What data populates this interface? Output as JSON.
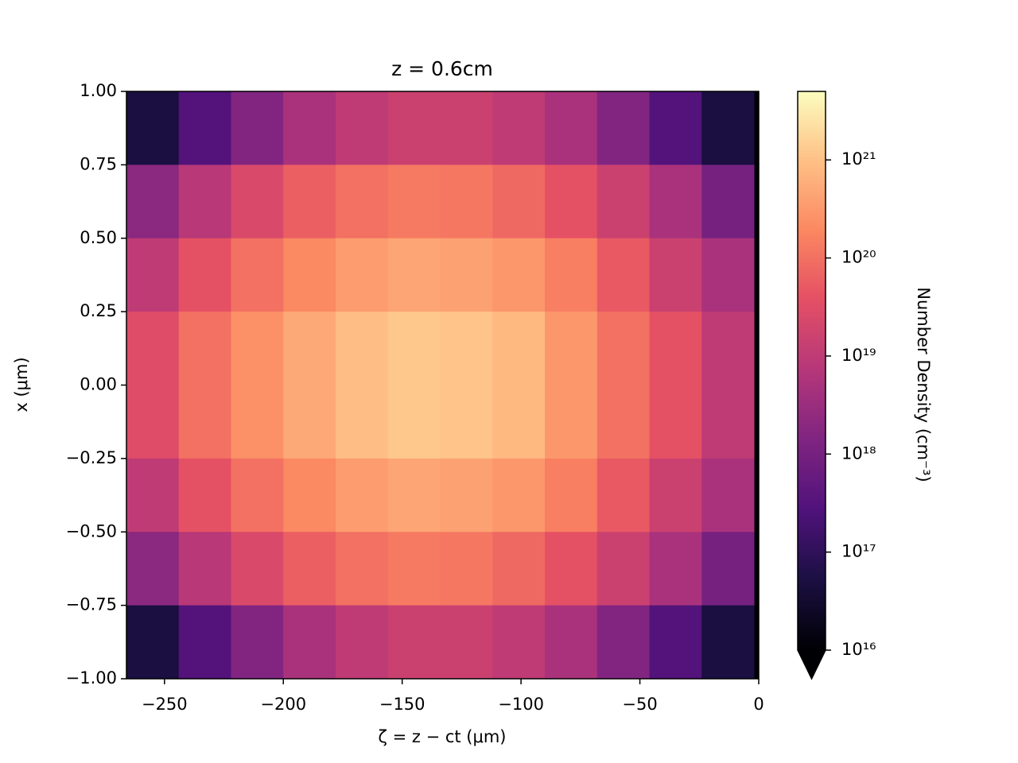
{
  "chart_data": {
    "type": "heatmap",
    "title": "z = 0.6cm",
    "x_label": "ζ = z − ct (μm)",
    "y_label": "x (μm)",
    "colorbar_label": "Number Density (cm⁻³)",
    "cmap": "magma",
    "color_scale": "log",
    "x": [
      -255,
      -233,
      -211,
      -189,
      -167,
      -145,
      -123,
      -101,
      -79,
      -57,
      -35,
      -13
    ],
    "y": [
      0.875,
      0.625,
      0.375,
      0.125,
      -0.125,
      -0.375,
      -0.625,
      -0.875
    ],
    "values": [
      [
        5e+16,
        3e+17,
        1.5e+18,
        5e+18,
        1e+19,
        1.5e+19,
        1.5e+19,
        1e+19,
        5e+18,
        1.5e+18,
        3e+17,
        5e+16
      ],
      [
        2e+18,
        8e+18,
        2.5e+19,
        6e+19,
        1e+20,
        1.3e+20,
        1.2e+20,
        8e+19,
        4e+19,
        1.5e+19,
        5e+18,
        1e+18
      ],
      [
        1e+19,
        4e+19,
        1e+20,
        2e+20,
        3.5e+20,
        4.5e+20,
        4e+20,
        3e+20,
        1.5e+20,
        5e+19,
        1.5e+19,
        5e+18
      ],
      [
        3e+19,
        1e+20,
        2.5e+20,
        5e+20,
        9e+20,
        1.2e+21,
        1.1e+21,
        8e+20,
        3e+20,
        1e+20,
        4e+19,
        1e+19
      ],
      [
        3e+19,
        1e+20,
        2.5e+20,
        5e+20,
        9e+20,
        1.2e+21,
        1.1e+21,
        8e+20,
        3e+20,
        1e+20,
        4e+19,
        1e+19
      ],
      [
        1e+19,
        4e+19,
        1e+20,
        2e+20,
        3.5e+20,
        4.5e+20,
        4e+20,
        3e+20,
        1.5e+20,
        5e+19,
        1.5e+19,
        5e+18
      ],
      [
        2e+18,
        8e+18,
        2.5e+19,
        6e+19,
        1e+20,
        1.3e+20,
        1.2e+20,
        8e+19,
        4e+19,
        1.5e+19,
        5e+18,
        1e+18
      ],
      [
        5e+16,
        3e+17,
        1.5e+18,
        5e+18,
        1e+19,
        1.5e+19,
        1.5e+19,
        1e+19,
        5e+18,
        1.5e+18,
        3e+17,
        5e+16
      ]
    ],
    "xlim": [
      -266,
      0
    ],
    "ylim": [
      -1,
      1
    ],
    "clim": [
      1e+16,
      5e+21
    ],
    "xticks": [
      {
        "value": -250,
        "label": "−250"
      },
      {
        "value": -200,
        "label": "−200"
      },
      {
        "value": -150,
        "label": "−150"
      },
      {
        "value": -100,
        "label": "−100"
      },
      {
        "value": -50,
        "label": "−50"
      },
      0
    ],
    "yticks": [
      {
        "value": 1,
        "label": "1.00"
      },
      {
        "value": 0.75,
        "label": "0.75"
      },
      {
        "value": 0.5,
        "label": "0.50"
      },
      {
        "value": 0.25,
        "label": "0.25"
      },
      {
        "value": 0,
        "label": "0.00"
      },
      {
        "value": -0.25,
        "label": "−0.25"
      },
      {
        "value": -0.5,
        "label": "−0.50"
      },
      {
        "value": -0.75,
        "label": "−0.75"
      },
      {
        "value": -1,
        "label": "−1.00"
      }
    ],
    "cticks": [
      {
        "value": 1e+16,
        "label": "10¹⁶"
      },
      {
        "value": 1e+17,
        "label": "10¹⁷"
      },
      {
        "value": 1e+18,
        "label": "10¹⁸"
      },
      {
        "value": 1e+19,
        "label": "10¹⁹"
      },
      {
        "value": 1e+20,
        "label": "10²⁰"
      },
      {
        "value": 1e+21,
        "label": "10²¹"
      }
    ],
    "extend": "min"
  }
}
